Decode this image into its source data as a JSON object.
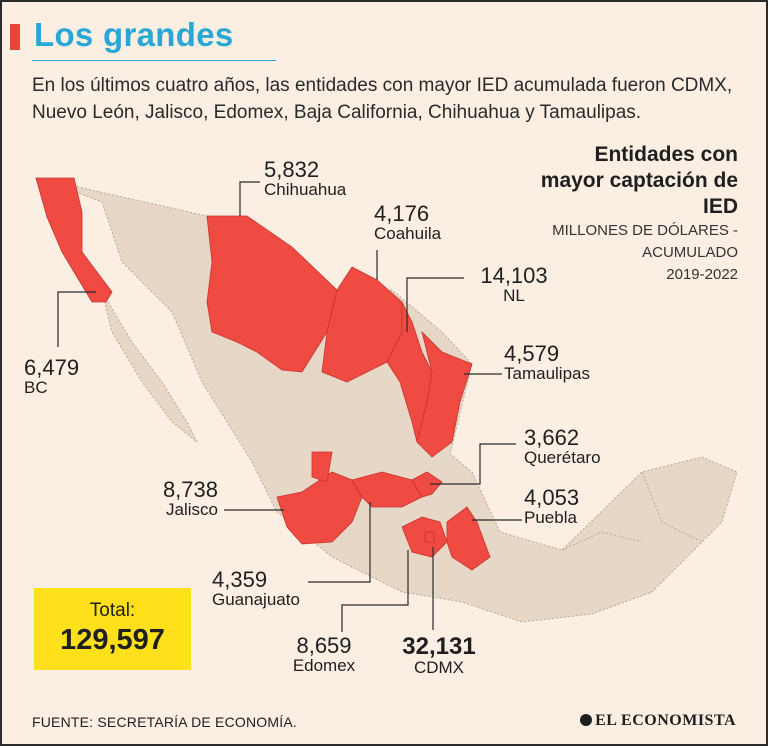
{
  "title": "Los grandes",
  "subtitle": "En los últimos cuatro años, las entidades con mayor IED acumulada fueron CDMX, Nuevo León, Jalisco, Edomex, Baja California, Chihuahua y Tamaulipas.",
  "legend": {
    "heading": "Entidades con mayor captación de IED",
    "unit": "MILLONES DE DÓLARES - ACUMULADO",
    "period": "2019-2022"
  },
  "states": [
    {
      "id": "chihuahua",
      "name": "Chihuahua",
      "value": "5,832"
    },
    {
      "id": "coahuila",
      "name": "Coahuila",
      "value": "4,176"
    },
    {
      "id": "nl",
      "name": "NL",
      "value": "14,103"
    },
    {
      "id": "tamaulipas",
      "name": "Tamaulipas",
      "value": "4,579"
    },
    {
      "id": "bc",
      "name": "BC",
      "value": "6,479"
    },
    {
      "id": "queretaro",
      "name": "Querétaro",
      "value": "3,662"
    },
    {
      "id": "jalisco",
      "name": "Jalisco",
      "value": "8,738"
    },
    {
      "id": "puebla",
      "name": "Puebla",
      "value": "4,053"
    },
    {
      "id": "guanajuato",
      "name": "Guanajuato",
      "value": "4,359"
    },
    {
      "id": "edomex",
      "name": "Edomex",
      "value": "8,659"
    },
    {
      "id": "cdmx",
      "name": "CDMX",
      "value": "32,131"
    }
  ],
  "total": {
    "label": "Total:",
    "value": "129,597"
  },
  "source": "FUENTE: SECRETARÍA DE ECONOMÍA.",
  "brand": "EL ECONOMISTA",
  "colors": {
    "highlight": "#ef4b43",
    "base": "#e6d7c6",
    "background": "#fbeee3",
    "title": "#29a7d6",
    "total_box": "#ffe01a"
  }
}
